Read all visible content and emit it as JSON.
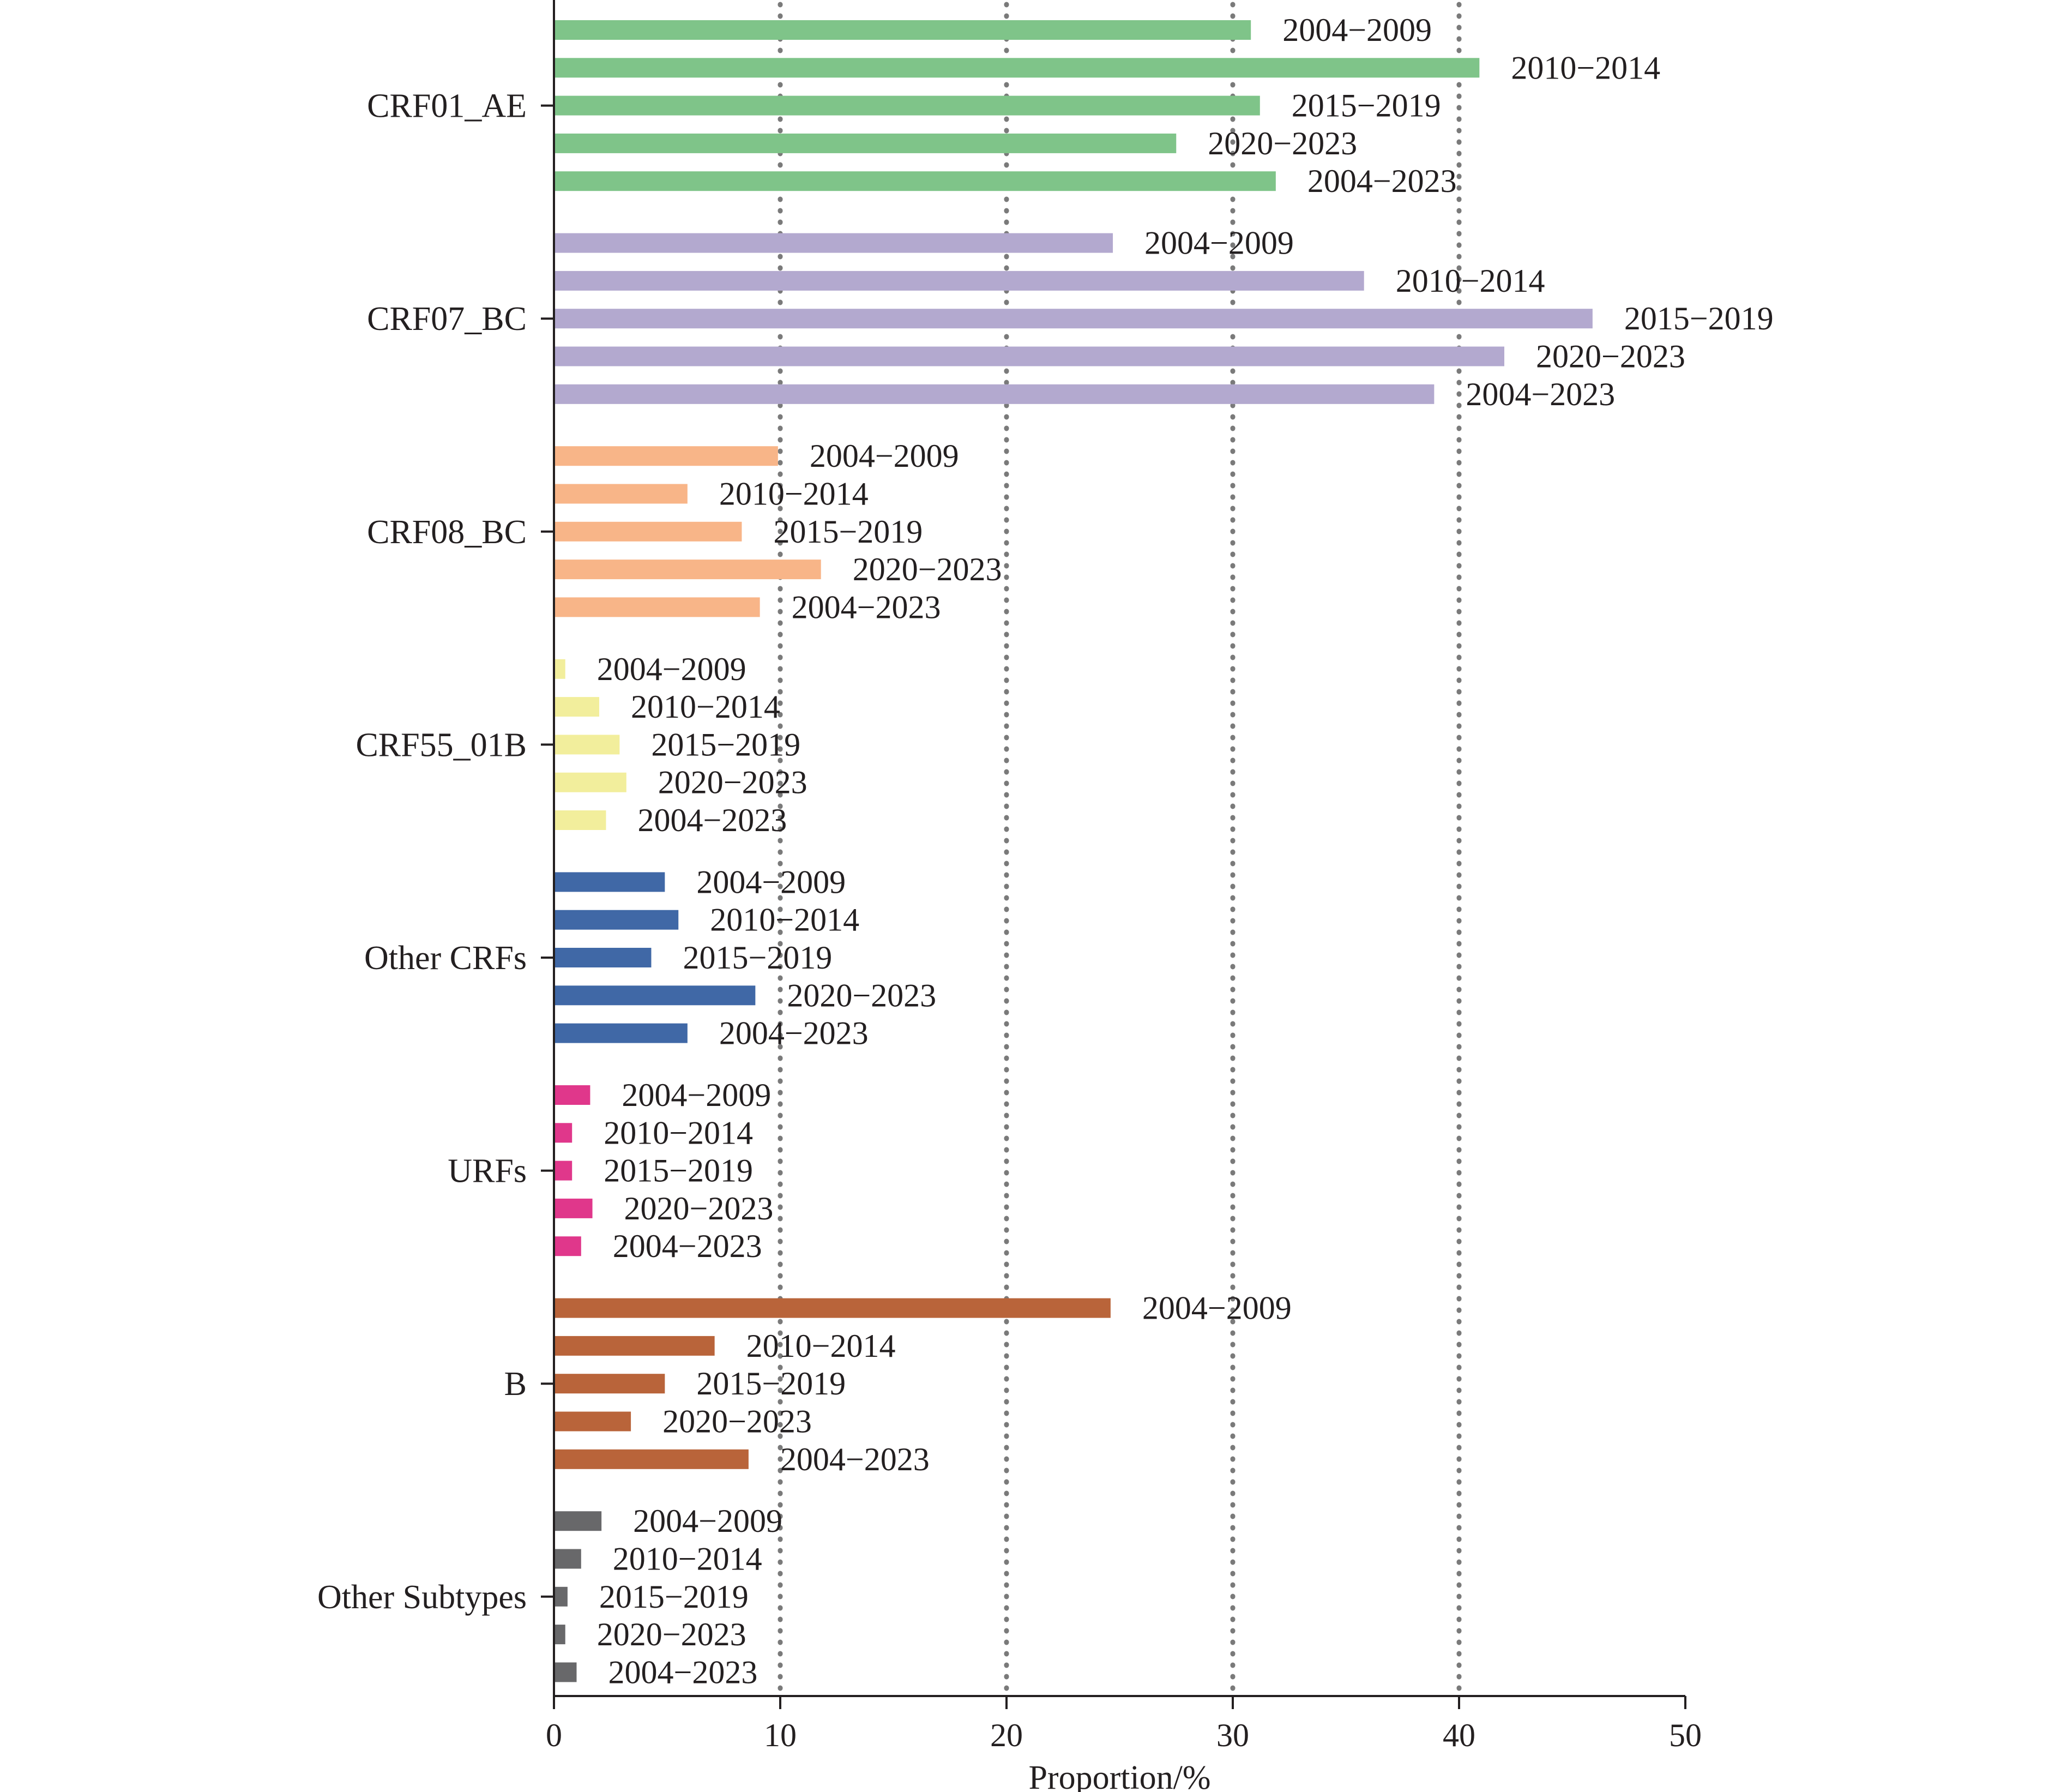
{
  "chart_data": {
    "type": "bar",
    "orientation": "horizontal",
    "xlabel": "Proportion/%",
    "ylabel": "",
    "xlim": [
      0,
      50
    ],
    "xticks": [
      "0",
      "10",
      "20",
      "30",
      "40",
      "50"
    ],
    "grid": "vertical dotted lines at 10, 20, 30, 40",
    "legend": "none",
    "groups": [
      {
        "name": "CRF01_AE",
        "color": "#7fc489",
        "bars": [
          {
            "label": "2004−2009",
            "value": 30.8
          },
          {
            "label": "2010−2014",
            "value": 40.9
          },
          {
            "label": "2015−2019",
            "value": 31.2
          },
          {
            "label": "2020−2023",
            "value": 27.5
          },
          {
            "label": "2004−2023",
            "value": 31.9
          }
        ]
      },
      {
        "name": "CRF07_BC",
        "color": "#b3a9cf",
        "bars": [
          {
            "label": "2004−2009",
            "value": 24.7
          },
          {
            "label": "2010−2014",
            "value": 35.8
          },
          {
            "label": "2015−2019",
            "value": 45.9
          },
          {
            "label": "2020−2023",
            "value": 42.0
          },
          {
            "label": "2004−2023",
            "value": 38.9
          }
        ]
      },
      {
        "name": "CRF08_BC",
        "color": "#f8b588",
        "bars": [
          {
            "label": "2004−2009",
            "value": 9.9
          },
          {
            "label": "2010−2014",
            "value": 5.9
          },
          {
            "label": "2015−2019",
            "value": 8.3
          },
          {
            "label": "2020−2023",
            "value": 11.8
          },
          {
            "label": "2004−2023",
            "value": 9.1
          }
        ]
      },
      {
        "name": "CRF55_01B",
        "color": "#f2ee9c",
        "bars": [
          {
            "label": "2004−2009",
            "value": 0.5
          },
          {
            "label": "2010−2014",
            "value": 2.0
          },
          {
            "label": "2015−2019",
            "value": 2.9
          },
          {
            "label": "2020−2023",
            "value": 3.2
          },
          {
            "label": "2004−2023",
            "value": 2.3
          }
        ]
      },
      {
        "name": "Other CRFs",
        "color": "#4068a6",
        "bars": [
          {
            "label": "2004−2009",
            "value": 4.9
          },
          {
            "label": "2010−2014",
            "value": 5.5
          },
          {
            "label": "2015−2019",
            "value": 4.3
          },
          {
            "label": "2020−2023",
            "value": 8.9
          },
          {
            "label": "2004−2023",
            "value": 5.9
          }
        ]
      },
      {
        "name": "URFs",
        "color": "#e0378b",
        "bars": [
          {
            "label": "2004−2009",
            "value": 1.6
          },
          {
            "label": "2010−2014",
            "value": 0.8
          },
          {
            "label": "2015−2019",
            "value": 0.8
          },
          {
            "label": "2020−2023",
            "value": 1.7
          },
          {
            "label": "2004−2023",
            "value": 1.2
          }
        ]
      },
      {
        "name": "B",
        "color": "#b9643a",
        "bars": [
          {
            "label": "2004−2009",
            "value": 24.6
          },
          {
            "label": "2010−2014",
            "value": 7.1
          },
          {
            "label": "2015−2019",
            "value": 4.9
          },
          {
            "label": "2020−2023",
            "value": 3.4
          },
          {
            "label": "2004−2023",
            "value": 8.6
          }
        ]
      },
      {
        "name": "Other Subtypes",
        "color": "#68686a",
        "bars": [
          {
            "label": "2004−2009",
            "value": 2.1
          },
          {
            "label": "2010−2014",
            "value": 1.2
          },
          {
            "label": "2015−2019",
            "value": 0.6
          },
          {
            "label": "2020−2023",
            "value": 0.5
          },
          {
            "label": "2004−2023",
            "value": 1.0
          }
        ]
      }
    ]
  }
}
